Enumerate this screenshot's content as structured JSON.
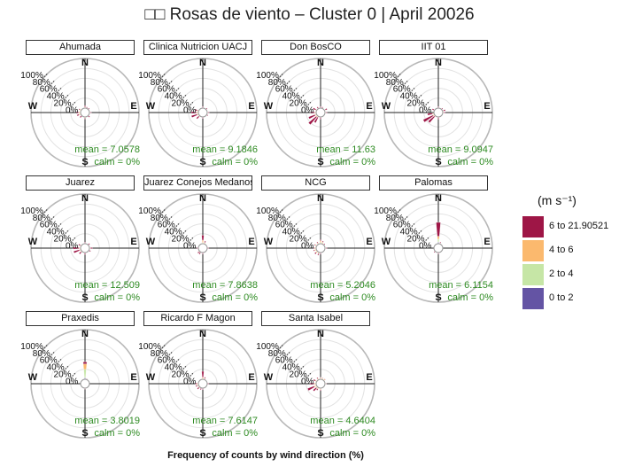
{
  "title": "□□ Rosas de viento – Cluster 0 | April 20026",
  "xlabel": "Frequency of counts by wind direction (%)",
  "legend": {
    "title": "(m s⁻¹)",
    "items": [
      {
        "label": "6 to 21.90521",
        "color": "#9e1646"
      },
      {
        "label": "4 to 6",
        "color": "#fbb96e"
      },
      {
        "label": "2 to 4",
        "color": "#c6e6a6"
      },
      {
        "label": "0 to 2",
        "color": "#6454a4"
      }
    ]
  },
  "chart_data": {
    "type": "wind-rose",
    "radial_ticks": [
      "0%",
      "20%",
      "40%",
      "60%",
      "80%",
      "100%"
    ],
    "compass": {
      "n": "N",
      "e": "E",
      "s": "S",
      "w": "W"
    },
    "speed_bins": [
      "0 to 2",
      "2 to 4",
      "4 to 6",
      "6 to 21.90521"
    ],
    "panels": [
      {
        "name": "Ahumada",
        "mean": "mean = 7.0578",
        "calm": "calm = 0%",
        "petals": [
          [
            0,
            [
              0,
              0,
              2,
              3
            ]
          ],
          [
            20,
            [
              0,
              0,
              1,
              2
            ]
          ],
          [
            45,
            [
              0,
              0,
              1,
              2
            ]
          ],
          [
            90,
            [
              0,
              1,
              1,
              2
            ]
          ],
          [
            135,
            [
              0,
              0,
              1,
              3
            ]
          ],
          [
            180,
            [
              0,
              0,
              2,
              2
            ]
          ],
          [
            225,
            [
              0,
              0,
              1,
              4
            ]
          ],
          [
            250,
            [
              0,
              1,
              3,
              4
            ]
          ],
          [
            270,
            [
              0,
              1,
              3,
              5
            ]
          ],
          [
            300,
            [
              0,
              1,
              2,
              2
            ]
          ]
        ]
      },
      {
        "name": "Clinica Nutricion UACJ",
        "mean": "mean = 9.1846",
        "calm": "calm = 0%",
        "petals": [
          [
            0,
            [
              0,
              0,
              1,
              2
            ]
          ],
          [
            45,
            [
              0,
              0,
              1,
              2
            ]
          ],
          [
            90,
            [
              0,
              1,
              1,
              2
            ]
          ],
          [
            120,
            [
              0,
              0,
              1,
              2
            ]
          ],
          [
            180,
            [
              0,
              0,
              1,
              2
            ]
          ],
          [
            225,
            [
              0,
              0,
              2,
              6
            ]
          ],
          [
            250,
            [
              0,
              1,
              2,
              12
            ]
          ],
          [
            270,
            [
              0,
              1,
              3,
              10
            ]
          ],
          [
            290,
            [
              0,
              1,
              2,
              5
            ]
          ]
        ]
      },
      {
        "name": "Don BosCO",
        "mean": "mean = 11.63",
        "calm": "calm = 0%",
        "petals": [
          [
            0,
            [
              0,
              0,
              1,
              2
            ]
          ],
          [
            20,
            [
              0,
              0,
              1,
              2
            ]
          ],
          [
            60,
            [
              0,
              1,
              1,
              4
            ]
          ],
          [
            90,
            [
              0,
              1,
              1,
              2
            ]
          ],
          [
            180,
            [
              0,
              0,
              1,
              3
            ]
          ],
          [
            210,
            [
              0,
              0,
              2,
              12
            ]
          ],
          [
            225,
            [
              0,
              1,
              2,
              20
            ]
          ],
          [
            245,
            [
              0,
              1,
              2,
              14
            ]
          ],
          [
            270,
            [
              0,
              1,
              2,
              8
            ]
          ],
          [
            300,
            [
              0,
              0,
              2,
              6
            ]
          ],
          [
            330,
            [
              0,
              0,
              1,
              3
            ]
          ]
        ]
      },
      {
        "name": "IIT 01",
        "mean": "mean = 9.0947",
        "calm": "calm = 0%",
        "petals": [
          [
            0,
            [
              0,
              0,
              1,
              2
            ]
          ],
          [
            45,
            [
              0,
              0,
              1,
              2
            ]
          ],
          [
            70,
            [
              0,
              1,
              1,
              4
            ]
          ],
          [
            90,
            [
              0,
              1,
              1,
              3
            ]
          ],
          [
            180,
            [
              0,
              0,
              1,
              3
            ]
          ],
          [
            225,
            [
              0,
              0,
              2,
              16
            ]
          ],
          [
            240,
            [
              0,
              1,
              2,
              22
            ]
          ],
          [
            260,
            [
              0,
              1,
              2,
              10
            ]
          ],
          [
            300,
            [
              0,
              0,
              1,
              4
            ]
          ]
        ]
      },
      {
        "name": "Juarez",
        "mean": "mean = 12.509",
        "calm": "calm = 0%",
        "petals": [
          [
            0,
            [
              0,
              0,
              1,
              2
            ]
          ],
          [
            45,
            [
              0,
              0,
              1,
              3
            ]
          ],
          [
            90,
            [
              0,
              1,
              1,
              4
            ]
          ],
          [
            120,
            [
              0,
              0,
              1,
              3
            ]
          ],
          [
            180,
            [
              0,
              0,
              1,
              3
            ]
          ],
          [
            225,
            [
              0,
              0,
              2,
              5
            ]
          ],
          [
            250,
            [
              0,
              1,
              2,
              12
            ]
          ],
          [
            270,
            [
              0,
              1,
              2,
              12
            ]
          ],
          [
            300,
            [
              0,
              0,
              2,
              4
            ]
          ]
        ]
      },
      {
        "name": "Juarez Conejos Medanos",
        "mean": "mean = 7.8638",
        "calm": "calm = 0%",
        "petals": [
          [
            0,
            [
              0,
              2,
              5,
              10
            ]
          ],
          [
            20,
            [
              0,
              1,
              2,
              3
            ]
          ],
          [
            90,
            [
              0,
              0,
              1,
              2
            ]
          ],
          [
            180,
            [
              0,
              0,
              1,
              2
            ]
          ],
          [
            210,
            [
              0,
              0,
              1,
              4
            ]
          ],
          [
            225,
            [
              0,
              1,
              1,
              3
            ]
          ],
          [
            270,
            [
              0,
              0,
              1,
              2
            ]
          ]
        ]
      },
      {
        "name": "NCG",
        "mean": "mean = 5.2046",
        "calm": "calm = 0%",
        "petals": [
          [
            0,
            [
              0,
              2,
              4,
              2
            ]
          ],
          [
            20,
            [
              0,
              1,
              3,
              2
            ]
          ],
          [
            45,
            [
              0,
              0,
              1,
              2
            ]
          ],
          [
            90,
            [
              0,
              1,
              1,
              2
            ]
          ],
          [
            180,
            [
              0,
              0,
              1,
              2
            ]
          ],
          [
            200,
            [
              0,
              1,
              2,
              3
            ]
          ],
          [
            225,
            [
              0,
              1,
              3,
              3
            ]
          ],
          [
            250,
            [
              0,
              1,
              3,
              2
            ]
          ],
          [
            270,
            [
              0,
              1,
              2,
              2
            ]
          ],
          [
            300,
            [
              0,
              1,
              2,
              2
            ]
          ],
          [
            330,
            [
              0,
              1,
              2,
              2
            ]
          ]
        ]
      },
      {
        "name": "Palomas",
        "mean": "mean = 6.1154",
        "calm": "calm = 0%",
        "petals": [
          [
            0,
            [
              3,
              6,
              6,
              28
            ]
          ],
          [
            20,
            [
              0,
              1,
              1,
              2
            ]
          ],
          [
            180,
            [
              0,
              0,
              1,
              2
            ]
          ],
          [
            225,
            [
              0,
              0,
              1,
              2
            ]
          ]
        ]
      },
      {
        "name": "Praxedis",
        "mean": "mean = 3.8019",
        "calm": "calm = 0%",
        "petals": [
          [
            0,
            [
              3,
              17,
              11,
              4
            ]
          ],
          [
            20,
            [
              0,
              0,
              1,
              1
            ]
          ],
          [
            180,
            [
              0,
              0,
              1,
              1
            ]
          ]
        ]
      },
      {
        "name": "Ricardo F Magon",
        "mean": "mean = 7.6147",
        "calm": "calm = 0%",
        "petals": [
          [
            0,
            [
              0,
              1,
              3,
              12
            ]
          ],
          [
            20,
            [
              0,
              1,
              1,
              3
            ]
          ],
          [
            90,
            [
              0,
              0,
              1,
              2
            ]
          ],
          [
            180,
            [
              0,
              0,
              1,
              2
            ]
          ],
          [
            200,
            [
              0,
              0,
              1,
              3
            ]
          ],
          [
            225,
            [
              0,
              0,
              2,
              4
            ]
          ],
          [
            250,
            [
              0,
              1,
              2,
              3
            ]
          ],
          [
            270,
            [
              0,
              1,
              2,
              3
            ]
          ]
        ]
      },
      {
        "name": "Santa Isabel",
        "mean": "mean = 4.6404",
        "calm": "calm = 0%",
        "petals": [
          [
            0,
            [
              0,
              1,
              2,
              1
            ]
          ],
          [
            20,
            [
              0,
              1,
              2,
              1
            ]
          ],
          [
            45,
            [
              0,
              1,
              2,
              1
            ]
          ],
          [
            90,
            [
              0,
              1,
              1,
              1
            ]
          ],
          [
            180,
            [
              0,
              1,
              2,
              2
            ]
          ],
          [
            210,
            [
              0,
              1,
              2,
              3
            ]
          ],
          [
            225,
            [
              0,
              1,
              2,
              8
            ]
          ],
          [
            245,
            [
              0,
              2,
              3,
              14
            ]
          ],
          [
            270,
            [
              0,
              1,
              3,
              8
            ]
          ],
          [
            300,
            [
              0,
              1,
              2,
              4
            ]
          ],
          [
            330,
            [
              0,
              1,
              2,
              2
            ]
          ]
        ]
      }
    ]
  }
}
